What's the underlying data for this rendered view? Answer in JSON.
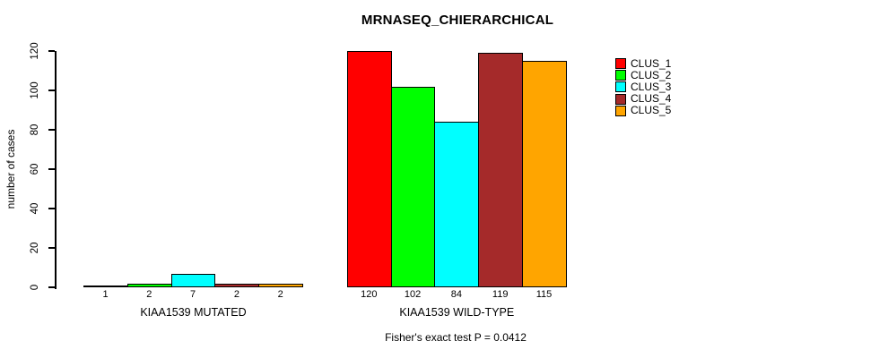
{
  "chart_data": {
    "type": "bar",
    "title": "MRNASEQ_CHIERARCHICAL",
    "ylabel": "number of cases",
    "xlabel": "",
    "ylim": [
      0,
      120
    ],
    "yticks": [
      0,
      20,
      40,
      60,
      80,
      100,
      120
    ],
    "grid": false,
    "legend_position": "right",
    "categories": [
      "KIAA1539 MUTATED",
      "KIAA1539 WILD-TYPE"
    ],
    "series": [
      {
        "name": "CLUS_1",
        "color": "#ff0000",
        "values": [
          1,
          120
        ]
      },
      {
        "name": "CLUS_2",
        "color": "#00ff00",
        "values": [
          2,
          102
        ]
      },
      {
        "name": "CLUS_3",
        "color": "#00ffff",
        "values": [
          7,
          84
        ]
      },
      {
        "name": "CLUS_4",
        "color": "#a52a2a",
        "values": [
          2,
          119
        ]
      },
      {
        "name": "CLUS_5",
        "color": "#ffa500",
        "values": [
          2,
          115
        ]
      }
    ],
    "bar_value_labels": true,
    "annotation": "Fisher's exact test P = 0.0412"
  }
}
